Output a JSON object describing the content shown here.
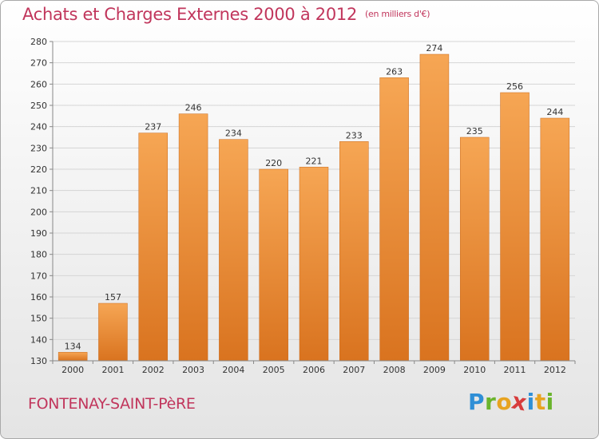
{
  "title": "Achats et Charges Externes 2000 à 2012",
  "unit": "(en milliers d'€)",
  "commune": "FONTENAY-SAINT-PèRE",
  "logo": {
    "text": "Proxiti",
    "letters": [
      "P",
      "r",
      "o",
      "x",
      "i",
      "t",
      "i"
    ]
  },
  "colors": {
    "bar_light": "#f6a654",
    "bar_dark": "#d9731f",
    "title": "#c1365c",
    "grid": "#d5d5d5"
  },
  "chart_data": {
    "type": "bar",
    "title": "Achats et Charges Externes 2000 à 2012",
    "subtitle": "(en milliers d'€)",
    "categories": [
      "2000",
      "2001",
      "2002",
      "2003",
      "2004",
      "2005",
      "2006",
      "2007",
      "2008",
      "2009",
      "2010",
      "2011",
      "2012"
    ],
    "values": [
      134,
      157,
      237,
      246,
      234,
      220,
      221,
      233,
      263,
      274,
      235,
      256,
      244
    ],
    "ylim": [
      130,
      280
    ],
    "yticks": [
      130,
      140,
      150,
      160,
      170,
      180,
      190,
      200,
      210,
      220,
      230,
      240,
      250,
      260,
      270,
      280
    ],
    "grid": true,
    "legend": "none",
    "data_labels": true
  }
}
